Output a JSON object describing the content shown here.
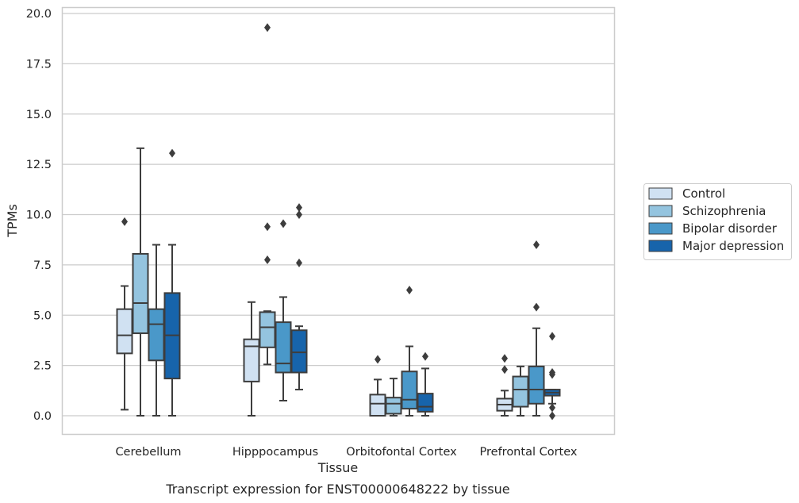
{
  "chart_data": {
    "type": "box",
    "caption": "Transcript expression for ENST00000648222 by tissue",
    "xlabel": "Tissue",
    "ylabel": "TPMs",
    "ylim": [
      -0.9,
      20.3
    ],
    "yticks": [
      "0.0",
      "2.5",
      "5.0",
      "7.5",
      "10.0",
      "12.5",
      "15.0",
      "17.5",
      "20.0"
    ],
    "ytick_values": [
      0,
      2.5,
      5,
      7.5,
      10,
      12.5,
      15,
      17.5,
      20
    ],
    "grid": "horizontal",
    "legend_position": "right",
    "categories": [
      "Cerebellum",
      "Hipppocampus",
      "Orbitofontal Cortex",
      "Prefrontal Cortex"
    ],
    "series": [
      {
        "name": "Control",
        "color": "#d0e1f2",
        "boxes": [
          {
            "whislo": 0.3,
            "q1": 3.1,
            "med": 4.0,
            "q3": 5.3,
            "whishi": 6.45,
            "fliers": [
              9.65
            ]
          },
          {
            "whislo": 0.0,
            "q1": 1.7,
            "med": 3.45,
            "q3": 3.8,
            "whishi": 5.65,
            "fliers": []
          },
          {
            "whislo": 0.0,
            "q1": 0.0,
            "med": 0.6,
            "q3": 1.05,
            "whishi": 1.8,
            "fliers": [
              2.8
            ]
          },
          {
            "whislo": 0.0,
            "q1": 0.25,
            "med": 0.55,
            "q3": 0.85,
            "whishi": 1.25,
            "fliers": [
              2.3,
              2.85
            ]
          }
        ]
      },
      {
        "name": "Schizophrenia",
        "color": "#94c4df",
        "boxes": [
          {
            "whislo": 0.0,
            "q1": 4.1,
            "med": 5.6,
            "q3": 8.05,
            "whishi": 13.3,
            "fliers": []
          },
          {
            "whislo": 2.55,
            "q1": 3.4,
            "med": 4.4,
            "q3": 5.15,
            "whishi": 5.2,
            "fliers": [
              7.75,
              9.4,
              19.3
            ]
          },
          {
            "whislo": 0.0,
            "q1": 0.1,
            "med": 0.6,
            "q3": 0.9,
            "whishi": 1.85,
            "fliers": []
          },
          {
            "whislo": 0.0,
            "q1": 0.45,
            "med": 1.3,
            "q3": 1.95,
            "whishi": 2.45,
            "fliers": []
          }
        ]
      },
      {
        "name": "Bipolar disorder",
        "color": "#4a98c9",
        "boxes": [
          {
            "whislo": 0.0,
            "q1": 2.75,
            "med": 4.55,
            "q3": 5.3,
            "whishi": 8.5,
            "fliers": []
          },
          {
            "whislo": 0.75,
            "q1": 2.15,
            "med": 2.6,
            "q3": 4.65,
            "whishi": 5.9,
            "fliers": [
              9.55
            ]
          },
          {
            "whislo": 0.0,
            "q1": 0.35,
            "med": 0.8,
            "q3": 2.2,
            "whishi": 3.45,
            "fliers": [
              6.25
            ]
          },
          {
            "whislo": 0.0,
            "q1": 0.6,
            "med": 1.3,
            "q3": 2.45,
            "whishi": 4.35,
            "fliers": [
              5.4,
              8.5
            ]
          }
        ]
      },
      {
        "name": "Major depression",
        "color": "#1764ab",
        "boxes": [
          {
            "whislo": 0.0,
            "q1": 1.85,
            "med": 4.0,
            "q3": 6.1,
            "whishi": 8.5,
            "fliers": [
              13.05
            ]
          },
          {
            "whislo": 1.3,
            "q1": 2.15,
            "med": 3.15,
            "q3": 4.25,
            "whishi": 4.45,
            "fliers": [
              7.6,
              10.0,
              10.35
            ]
          },
          {
            "whislo": 0.0,
            "q1": 0.2,
            "med": 0.45,
            "q3": 1.1,
            "whishi": 2.35,
            "fliers": [
              2.95
            ]
          },
          {
            "whislo": 0.6,
            "q1": 1.0,
            "med": 1.15,
            "q3": 1.3,
            "whishi": 1.3,
            "fliers": [
              0.0,
              0.4,
              2.05,
              2.15,
              3.95
            ]
          }
        ]
      }
    ]
  }
}
